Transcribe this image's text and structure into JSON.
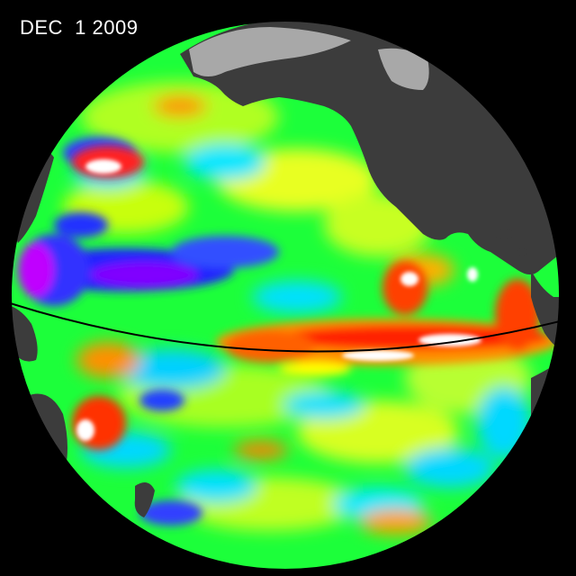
{
  "date_label": "DEC  1 2009",
  "colors": {
    "background": "#000000",
    "land": "#3c3c3c",
    "ice": "#a8a8a8",
    "equator_line": "#000000",
    "anomaly_scale": [
      "#ff00ff",
      "#2020ff",
      "#00c8ff",
      "#00ff40",
      "#90ff00",
      "#ffff00",
      "#ff8000",
      "#ff0000",
      "#ffffff"
    ]
  }
}
